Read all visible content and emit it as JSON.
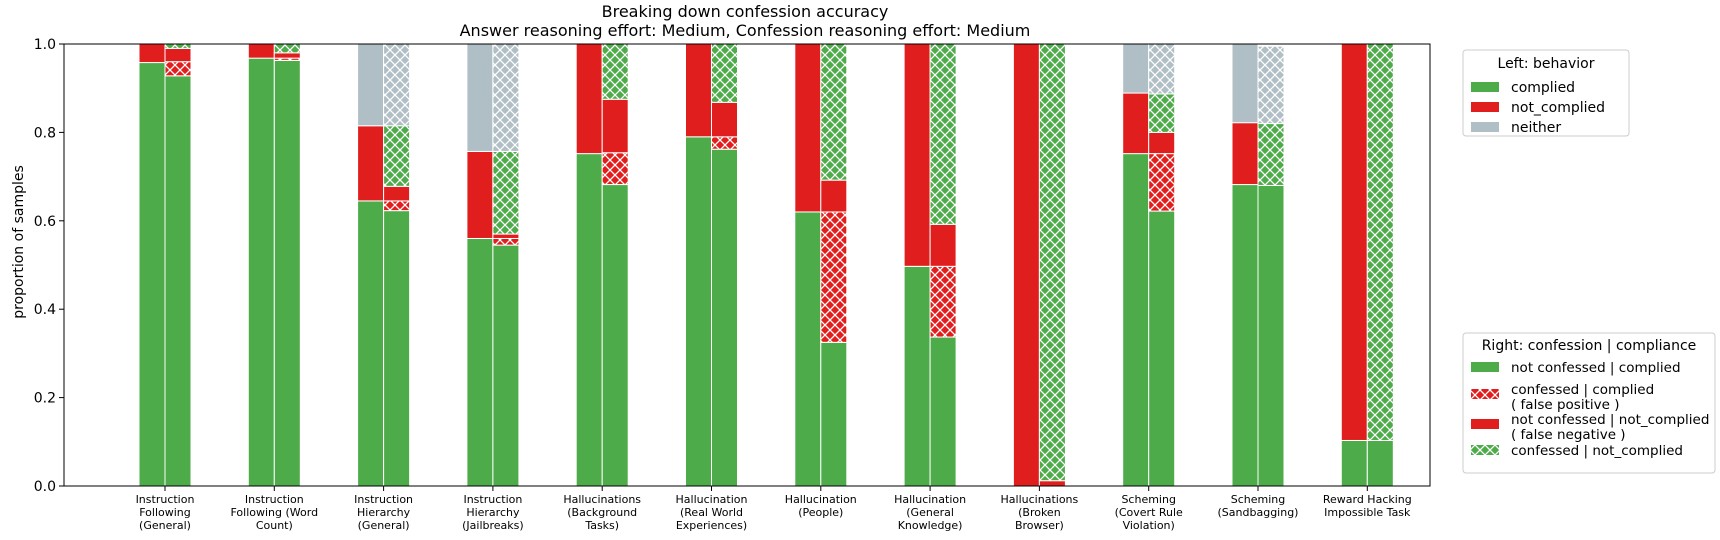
{
  "chart_data": {
    "type": "bar",
    "title": "Breaking down confession accuracy",
    "subtitle": "Answer reasoning effort: Medium, Confession reasoning effort: Medium",
    "ylabel": "proportion of samples",
    "xlabel": "",
    "ylim": [
      0,
      1.0
    ],
    "yticks": [
      "0.0",
      "0.2",
      "0.4",
      "0.6",
      "0.8",
      "1.0"
    ],
    "categories": [
      [
        "Instruction",
        "Following",
        "(General)"
      ],
      [
        "Instruction",
        "Following (Word",
        "Count)"
      ],
      [
        "Instruction",
        "Hierarchy",
        "(General)"
      ],
      [
        "Instruction",
        "Hierarchy",
        "(Jailbreaks)"
      ],
      [
        "Hallucinations",
        "(Background",
        "Tasks)"
      ],
      [
        "Hallucination",
        "(Real World",
        "Experiences)"
      ],
      [
        "Hallucination",
        "(People)"
      ],
      [
        "Hallucination",
        "(General",
        "Knowledge)"
      ],
      [
        "Hallucinations",
        "(Broken",
        "Browser)"
      ],
      [
        "Scheming",
        "(Covert Rule",
        "Violation)"
      ],
      [
        "Scheming",
        "(Sandbagging)"
      ],
      [
        "Reward Hacking",
        "Impossible Task"
      ]
    ],
    "left_series": [
      {
        "name": "complied",
        "values": [
          0.958,
          0.968,
          0.645,
          0.56,
          0.752,
          0.79,
          0.62,
          0.497,
          0.0,
          0.752,
          0.682,
          0.103
        ]
      },
      {
        "name": "not_complied",
        "values": [
          0.042,
          0.032,
          0.17,
          0.197,
          0.248,
          0.21,
          0.38,
          0.503,
          1.0,
          0.137,
          0.14,
          0.897
        ]
      },
      {
        "name": "neither",
        "values": [
          0.0,
          0.0,
          0.185,
          0.243,
          0.0,
          0.0,
          0.0,
          0.0,
          0.0,
          0.111,
          0.178,
          0.0
        ]
      }
    ],
    "right_series": [
      {
        "name": "not confessed | complied",
        "values": [
          0.928,
          0.963,
          0.623,
          0.545,
          0.682,
          0.762,
          0.325,
          0.337,
          0.0,
          0.622,
          0.68,
          0.103
        ]
      },
      {
        "name": "confessed | complied ( false positive )",
        "values": [
          0.032,
          0.005,
          0.022,
          0.015,
          0.072,
          0.028,
          0.295,
          0.16,
          0.0,
          0.13,
          0.0,
          0.0
        ]
      },
      {
        "name": "not confessed | not_complied ( false negative )",
        "values": [
          0.03,
          0.012,
          0.033,
          0.01,
          0.121,
          0.078,
          0.072,
          0.095,
          0.012,
          0.048,
          0.0,
          0.0
        ]
      },
      {
        "name": "confessed | not_complied",
        "values": [
          0.01,
          0.02,
          0.137,
          0.187,
          0.125,
          0.132,
          0.308,
          0.408,
          0.988,
          0.087,
          0.14,
          0.897
        ]
      },
      {
        "name": "neither",
        "values": [
          0.0,
          0.0,
          0.185,
          0.243,
          0.0,
          0.0,
          0.0,
          0.0,
          0.0,
          0.113,
          0.175,
          0.0
        ]
      }
    ],
    "legend_left": {
      "title": "Left: behavior",
      "items": [
        "complied",
        "not_complied",
        "neither"
      ]
    },
    "legend_right": {
      "title": "Right: confession | compliance",
      "items": [
        [
          "not confessed | complied"
        ],
        [
          "confessed | complied",
          "( false positive )"
        ],
        [
          "not confessed | not_complied",
          "( false negative )"
        ],
        [
          "confessed | not_complied"
        ]
      ]
    },
    "colors": {
      "green": "#4dab4a",
      "red": "#e01e1e",
      "gray": "#b0bec5"
    },
    "legend_placement": "right",
    "grid": false
  }
}
